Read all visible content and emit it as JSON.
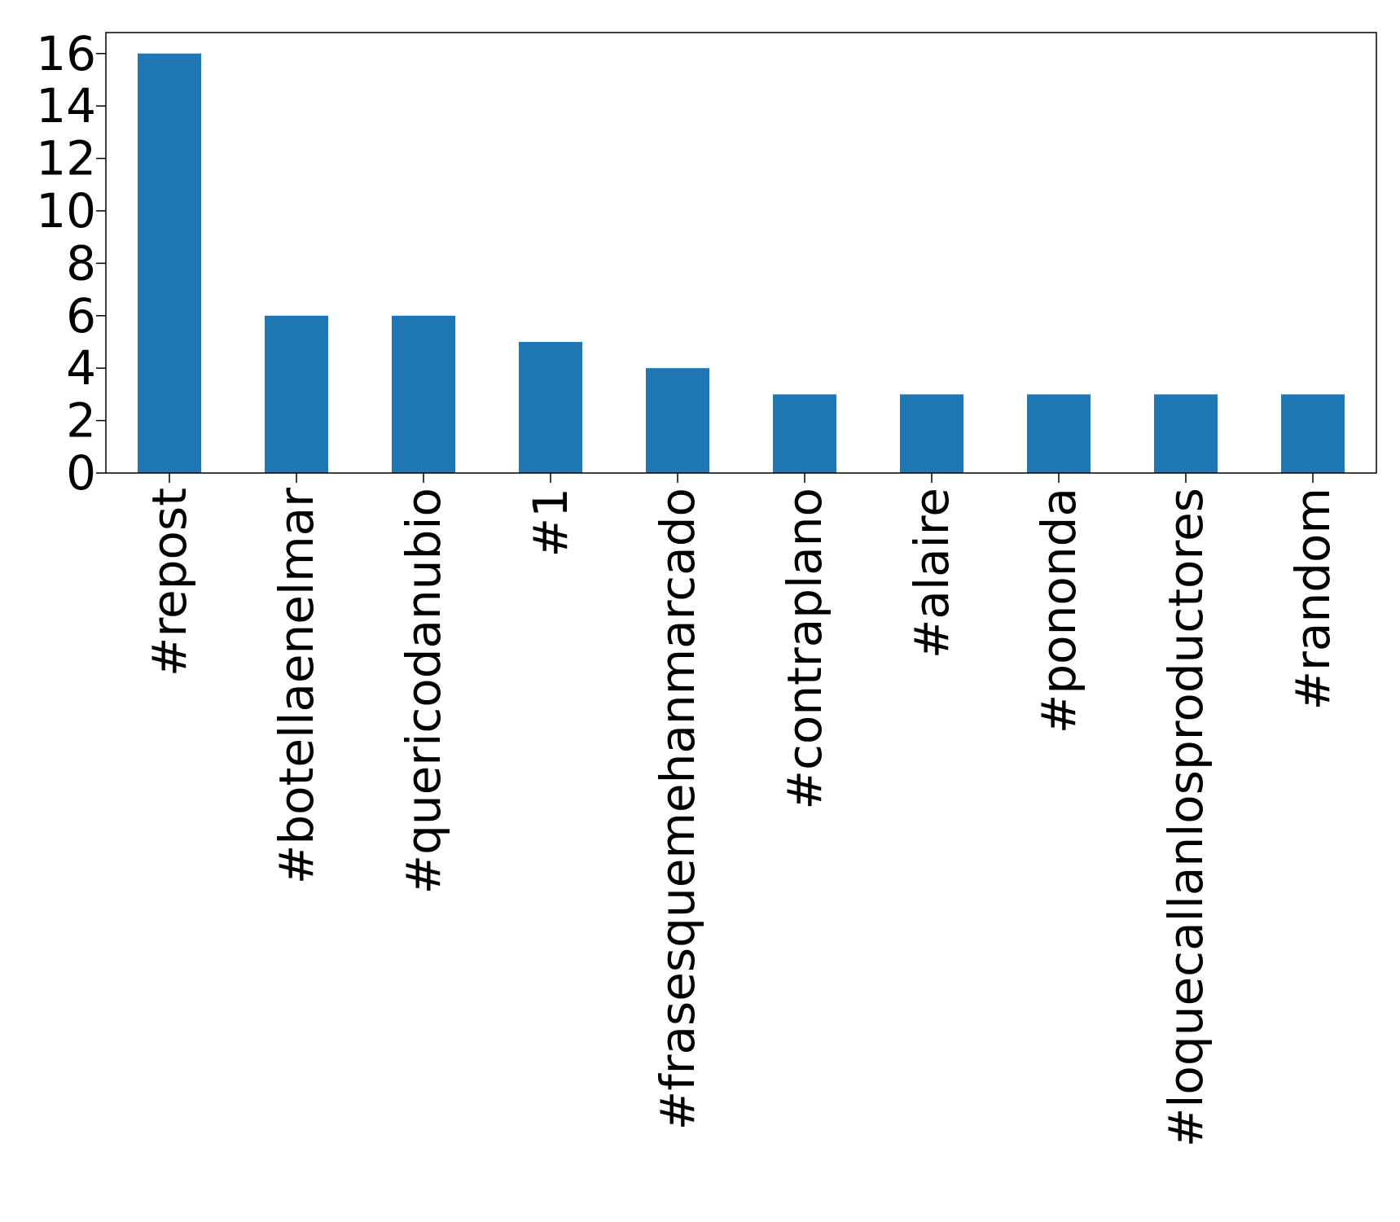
{
  "chart_data": {
    "type": "bar",
    "title": "",
    "xlabel": "",
    "ylabel": "",
    "categories": [
      "#repost",
      "#botellaenelmar",
      "#quericodanubio",
      "#1",
      "#frasesquemehanmarcado",
      "#contraplano",
      "#alaire",
      "#pononda",
      "#loquecallanlosproductores",
      "#random"
    ],
    "values": [
      16,
      6,
      6,
      5,
      4,
      3,
      3,
      3,
      3,
      3
    ],
    "ylim": [
      0,
      16.8
    ],
    "yticks": [
      0,
      2,
      4,
      6,
      8,
      10,
      12,
      14,
      16
    ],
    "grid": false,
    "legend": "none",
    "bar_color": "#1f77b4",
    "axis_color": "#000000"
  }
}
